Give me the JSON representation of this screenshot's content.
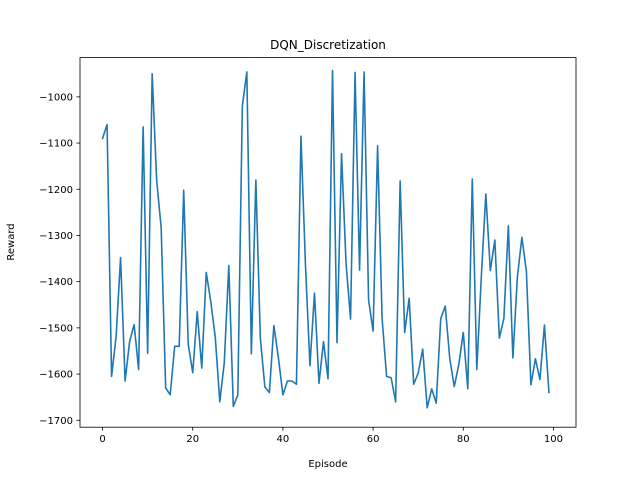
{
  "chart_data": {
    "type": "line",
    "title": "DQN_Discretization",
    "xlabel": "Episode",
    "ylabel": "Reward",
    "xlim": [
      -5,
      105
    ],
    "ylim": [
      -1715,
      -915
    ],
    "xticks": [
      0,
      20,
      40,
      60,
      80,
      100
    ],
    "yticks": [
      -1700,
      -1600,
      -1500,
      -1400,
      -1300,
      -1200,
      -1100,
      -1000
    ],
    "grid": false,
    "legend": "none",
    "series_color": "#1f77b4",
    "x": [
      0,
      1,
      2,
      3,
      4,
      5,
      6,
      7,
      8,
      9,
      10,
      11,
      12,
      13,
      14,
      15,
      16,
      17,
      18,
      19,
      20,
      21,
      22,
      23,
      24,
      25,
      26,
      27,
      28,
      29,
      30,
      31,
      32,
      33,
      34,
      35,
      36,
      37,
      38,
      39,
      40,
      41,
      42,
      43,
      44,
      45,
      46,
      47,
      48,
      49,
      50,
      51,
      52,
      53,
      54,
      55,
      56,
      57,
      58,
      59,
      60,
      61,
      62,
      63,
      64,
      65,
      66,
      67,
      68,
      69,
      70,
      71,
      72,
      73,
      74,
      75,
      76,
      77,
      78,
      79,
      80,
      81,
      82,
      83,
      84,
      85,
      86,
      87,
      88,
      89,
      90,
      91,
      92,
      93,
      94,
      95,
      96,
      97,
      98,
      99
    ],
    "series": [
      {
        "values": [
          -1090,
          -1060,
          -1605,
          -1520,
          -1348,
          -1615,
          -1530,
          -1493,
          -1590,
          -1065,
          -1555,
          -950,
          -1180,
          -1283,
          -1630,
          -1645,
          -1540,
          -1540,
          -1202,
          -1535,
          -1597,
          -1465,
          -1587,
          -1380,
          -1443,
          -1520,
          -1660,
          -1575,
          -1365,
          -1670,
          -1645,
          -1020,
          -946,
          -1556,
          -1180,
          -1523,
          -1628,
          -1640,
          -1495,
          -1565,
          -1645,
          -1615,
          -1615,
          -1622,
          -1085,
          -1363,
          -1582,
          -1425,
          -1620,
          -1530,
          -1610,
          -943,
          -1532,
          -1123,
          -1360,
          -1481,
          -947,
          -1375,
          -946,
          -1440,
          -1507,
          -1106,
          -1480,
          -1605,
          -1608,
          -1660,
          -1182,
          -1510,
          -1436,
          -1622,
          -1598,
          -1546,
          -1673,
          -1632,
          -1663,
          -1480,
          -1453,
          -1566,
          -1627,
          -1580,
          -1510,
          -1632,
          -1178,
          -1590,
          -1390,
          -1210,
          -1376,
          -1310,
          -1522,
          -1480,
          -1279,
          -1565,
          -1390,
          -1304,
          -1378,
          -1623,
          -1567,
          -1612,
          -1494,
          -1640
        ]
      }
    ]
  }
}
